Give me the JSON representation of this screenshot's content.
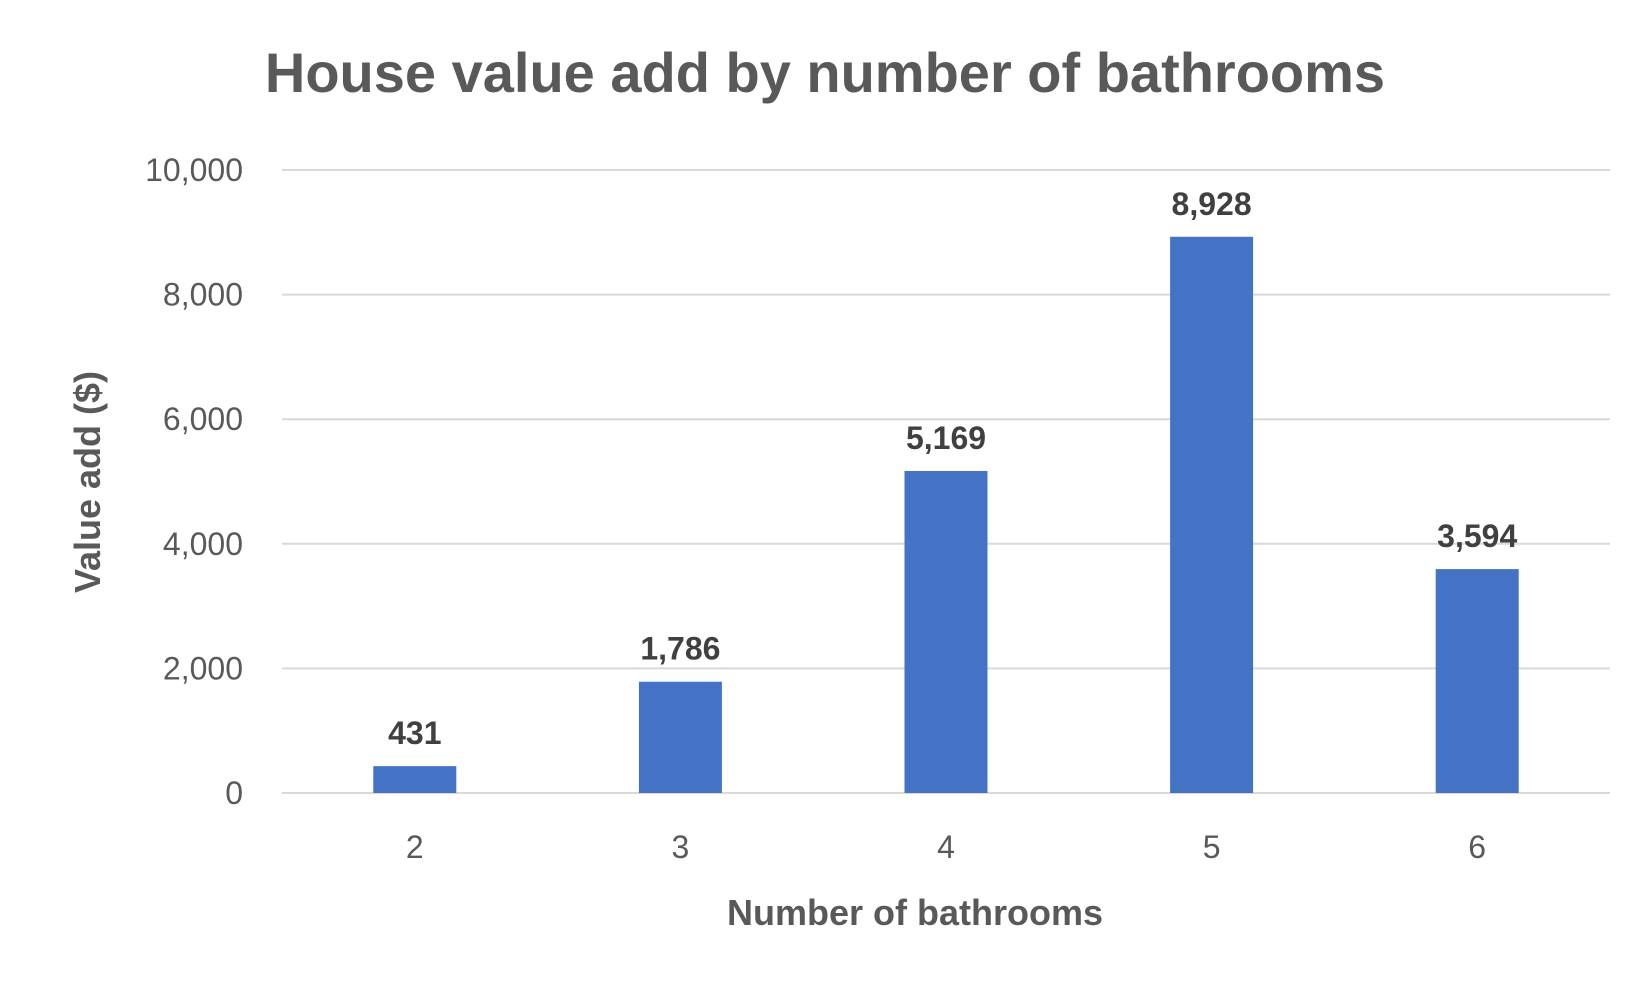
{
  "chart_data": {
    "type": "bar",
    "title": "House value add by number of bathrooms",
    "xlabel": "Number of bathrooms",
    "ylabel": "Value add ($)",
    "categories": [
      "2",
      "3",
      "4",
      "5",
      "6"
    ],
    "values": [
      431,
      1786,
      5169,
      8928,
      3594
    ],
    "value_labels": [
      "431",
      "1,786",
      "5,169",
      "8,928",
      "3,594"
    ],
    "ylim": [
      0,
      10000
    ],
    "yticks": [
      0,
      2000,
      4000,
      6000,
      8000,
      10000
    ],
    "ytick_labels": [
      "0",
      "2,000",
      "4,000",
      "6,000",
      "8,000",
      "10,000"
    ],
    "grid": true,
    "legend": "none",
    "colors": {
      "bar": "#4472c4",
      "gridline": "#d9d9d9",
      "text": "#595959",
      "data_label": "#404040"
    }
  }
}
